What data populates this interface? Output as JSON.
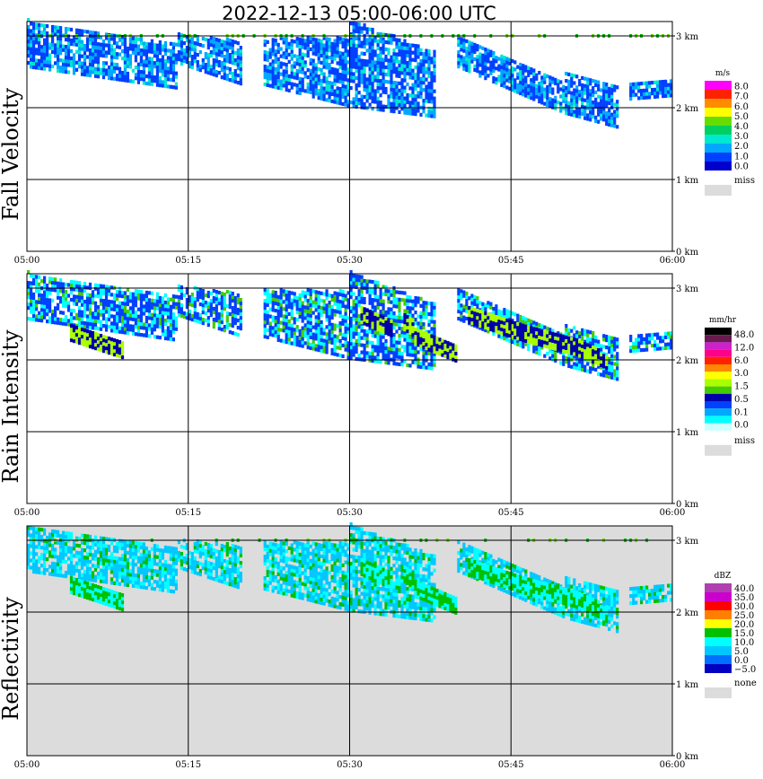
{
  "header": {
    "title": "2022-12-13   05:00-06:00 UTC"
  },
  "colors": {
    "background": "#ffffff",
    "reflectivity_background": "#dcdcdc",
    "frame": "#000000",
    "missing": "#dcdcdc"
  },
  "chart_data": [
    {
      "type": "heatmap",
      "panel_title": "Fall Velocity",
      "unit": "m/s",
      "x_ticks": [
        "05:00",
        "05:15",
        "05:30",
        "05:45",
        "06:00"
      ],
      "y_ticks": [
        "0 km",
        "1 km",
        "2 km",
        "3 km"
      ],
      "ylim": [
        0,
        3.2
      ],
      "grid": true,
      "legend": {
        "labels": [
          "8.0",
          "7.0",
          "6.0",
          "5.0",
          "4.0",
          "3.0",
          "2.0",
          "1.0",
          "0.0"
        ],
        "colors": [
          "#ff00ff",
          "#ff2200",
          "#ff8c00",
          "#ffff00",
          "#66dd00",
          "#00d060",
          "#00e8d0",
          "#00a8ff",
          "#0040ff",
          "#0000cc"
        ],
        "missing_label": "miss"
      }
    },
    {
      "type": "heatmap",
      "panel_title": "Rain Intensity",
      "unit": "mm/hr",
      "x_ticks": [
        "05:00",
        "05:15",
        "05:30",
        "05:45",
        "06:00"
      ],
      "y_ticks": [
        "0 km",
        "1 km",
        "2 km",
        "3 km"
      ],
      "ylim": [
        0,
        3.2
      ],
      "grid": true,
      "legend": {
        "labels": [
          "48.0",
          "12.0",
          "6.0",
          "3.0",
          "1.5",
          "0.5",
          "0.1",
          "0.0"
        ],
        "colors": [
          "#000000",
          "#6a1a50",
          "#cc22cc",
          "#ff0088",
          "#ff2200",
          "#ff8800",
          "#ffff00",
          "#aaff00",
          "#44cc00",
          "#0000aa",
          "#0040ff",
          "#00a8ff",
          "#00ffff",
          "#ccffff"
        ],
        "missing_label": "miss"
      }
    },
    {
      "type": "heatmap",
      "panel_title": "Reflectivity",
      "unit": "dBZ",
      "x_ticks": [
        "05:00",
        "05:15",
        "05:30",
        "05:45",
        "06:00"
      ],
      "y_ticks": [
        "0 km",
        "1 km",
        "2 km",
        "3 km"
      ],
      "ylim": [
        0,
        3.2
      ],
      "grid": true,
      "legend": {
        "labels": [
          "40.0",
          "35.0",
          "30.0",
          "25.0",
          "20.0",
          "15.0",
          "10.0",
          "5.0",
          "0.0",
          "−5.0"
        ],
        "colors": [
          "#b040b0",
          "#cc00cc",
          "#ff0000",
          "#ff8000",
          "#ffff00",
          "#00c000",
          "#00ffff",
          "#00c8ff",
          "#0070ff",
          "#0000c0"
        ],
        "missing_label": "none"
      }
    }
  ]
}
